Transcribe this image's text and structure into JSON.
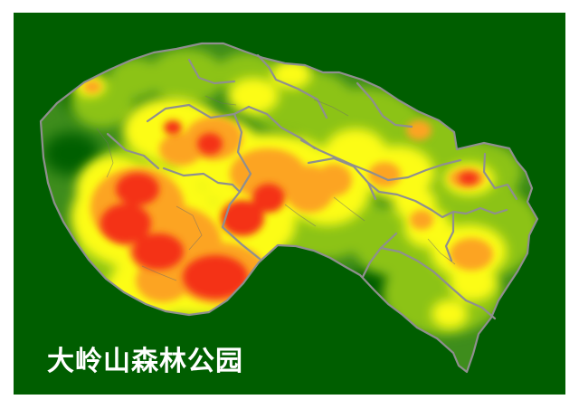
{
  "map": {
    "title": "大岭山森林公园",
    "colors": {
      "background": "#005e00",
      "low_density": "#3e8d1c",
      "medium_low_density": "#8cc319",
      "medium_density": "#fcfc12",
      "high_density": "#fca421",
      "very_high_density": "#f43313",
      "boundary": "#8f8f8f"
    },
    "visual_elements": {
      "outline": "boundary-outline",
      "base": "heat-base",
      "layers": [
        "low-density",
        "medium-low-density",
        "medium-density",
        "high-density",
        "very-high-density"
      ]
    }
  }
}
